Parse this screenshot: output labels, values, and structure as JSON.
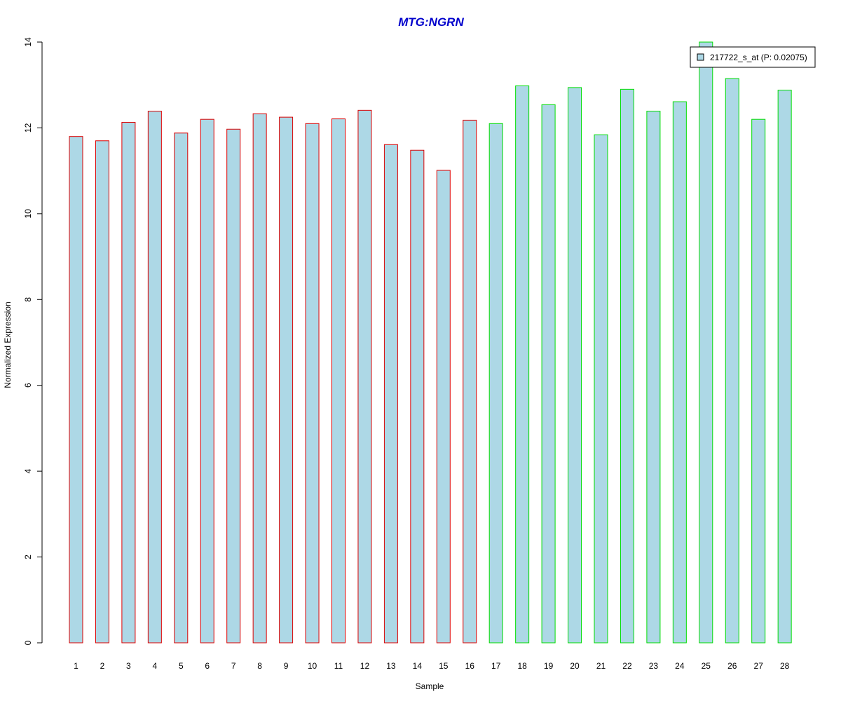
{
  "chart_data": {
    "type": "bar",
    "title": "MTG:NGRN",
    "xlabel": "Sample",
    "ylabel": "Normalized Expression",
    "ylim": [
      0,
      14
    ],
    "yticks": [
      0,
      2,
      4,
      6,
      8,
      10,
      12,
      14
    ],
    "grid": false,
    "categories": [
      "1",
      "2",
      "3",
      "4",
      "5",
      "6",
      "7",
      "8",
      "9",
      "10",
      "11",
      "12",
      "13",
      "14",
      "15",
      "16",
      "17",
      "18",
      "19",
      "20",
      "21",
      "22",
      "23",
      "24",
      "25",
      "26",
      "27",
      "28"
    ],
    "series": [
      {
        "name": "217722_s_at (P: 0.02075)",
        "fill": "#add8e6",
        "values": [
          11.8,
          11.7,
          12.13,
          12.39,
          11.88,
          12.2,
          11.97,
          12.33,
          12.25,
          12.1,
          12.21,
          12.41,
          11.61,
          11.48,
          11.01,
          12.18,
          12.1,
          12.98,
          12.54,
          12.94,
          11.84,
          12.9,
          12.39,
          12.61,
          14.0,
          13.15,
          12.2,
          12.88
        ],
        "border_colors": [
          "#dd0000",
          "#dd0000",
          "#dd0000",
          "#dd0000",
          "#dd0000",
          "#dd0000",
          "#dd0000",
          "#dd0000",
          "#dd0000",
          "#dd0000",
          "#dd0000",
          "#dd0000",
          "#dd0000",
          "#dd0000",
          "#dd0000",
          "#dd0000",
          "#00dd00",
          "#00dd00",
          "#00dd00",
          "#00dd00",
          "#00dd00",
          "#00dd00",
          "#00dd00",
          "#00dd00",
          "#00dd00",
          "#00dd00",
          "#00dd00",
          "#00dd00"
        ]
      }
    ],
    "legend_position": "top-right",
    "colors": {
      "title": "#0000cc",
      "axis": "#000000",
      "legend_border": "#000000"
    }
  }
}
